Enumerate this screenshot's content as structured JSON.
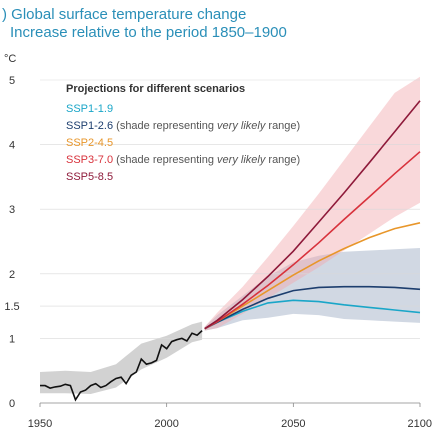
{
  "chart_data": {
    "type": "line",
    "title": ") Global surface temperature change",
    "subtitle": "Increase relative to the period 1850–1900",
    "unit": "°C",
    "xlim": [
      1950,
      2100
    ],
    "ylim": [
      0,
      5
    ],
    "x_ticks": [
      "1950",
      "2000",
      "2050",
      "2100"
    ],
    "y_ticks": [
      "0",
      "1",
      "1.5",
      "2",
      "3",
      "4",
      "5"
    ],
    "legend": {
      "title": "Projections for different scenarios",
      "items": [
        {
          "key": "ssp119",
          "label": "SSP1-1.9",
          "color": "#1aa6c8"
        },
        {
          "key": "ssp126",
          "label": "SSP1-2.6",
          "note_prefix": " (shade representing ",
          "note_italic": "very likely",
          "note_suffix": " range)",
          "color": "#1d3e6e"
        },
        {
          "key": "ssp245",
          "label": "SSP2-4.5",
          "color": "#e8962a"
        },
        {
          "key": "ssp370",
          "label": "SSP3-7.0",
          "note_prefix": " (shade representing ",
          "note_italic": "very likely",
          "note_suffix": " range)",
          "color": "#d8323c"
        },
        {
          "key": "ssp585",
          "label": "SSP5-8.5",
          "color": "#8e1a3a"
        }
      ]
    },
    "historical": {
      "color": "#111111",
      "x": [
        1950,
        1952,
        1954,
        1956,
        1958,
        1960,
        1962,
        1964,
        1966,
        1968,
        1970,
        1972,
        1974,
        1976,
        1978,
        1980,
        1982,
        1984,
        1986,
        1988,
        1990,
        1992,
        1994,
        1996,
        1998,
        2000,
        2002,
        2004,
        2006,
        2008,
        2010,
        2012,
        2014
      ],
      "y": [
        0.27,
        0.27,
        0.23,
        0.25,
        0.26,
        0.29,
        0.27,
        0.05,
        0.17,
        0.2,
        0.27,
        0.3,
        0.24,
        0.27,
        0.33,
        0.38,
        0.4,
        0.3,
        0.43,
        0.48,
        0.68,
        0.6,
        0.62,
        0.66,
        0.9,
        0.84,
        0.95,
        0.98,
        1.0,
        0.96,
        1.08,
        1.05,
        1.12
      ]
    },
    "historical_shade": {
      "x": [
        1950,
        1960,
        1970,
        1980,
        1990,
        2000,
        2010,
        2014
      ],
      "lower": [
        0.15,
        0.15,
        0.14,
        0.24,
        0.52,
        0.7,
        0.94,
        0.98
      ],
      "upper": [
        0.48,
        0.5,
        0.48,
        0.6,
        0.92,
        1.04,
        1.22,
        1.26
      ]
    },
    "series": [
      {
        "key": "ssp119",
        "name": "SSP1-1.9",
        "x": [
          2015,
          2020,
          2030,
          2040,
          2050,
          2060,
          2070,
          2080,
          2090,
          2100
        ],
        "y": [
          1.15,
          1.25,
          1.42,
          1.55,
          1.59,
          1.57,
          1.52,
          1.48,
          1.44,
          1.4
        ]
      },
      {
        "key": "ssp126",
        "name": "SSP1-2.6",
        "x": [
          2015,
          2020,
          2030,
          2040,
          2050,
          2060,
          2070,
          2080,
          2090,
          2100
        ],
        "y": [
          1.15,
          1.25,
          1.45,
          1.62,
          1.74,
          1.79,
          1.8,
          1.8,
          1.79,
          1.76
        ]
      },
      {
        "key": "ssp245",
        "name": "SSP2-4.5",
        "x": [
          2015,
          2020,
          2030,
          2040,
          2050,
          2060,
          2070,
          2080,
          2090,
          2100
        ],
        "y": [
          1.15,
          1.26,
          1.5,
          1.74,
          1.98,
          2.2,
          2.39,
          2.56,
          2.7,
          2.79
        ]
      },
      {
        "key": "ssp370",
        "name": "SSP3-7.0",
        "x": [
          2015,
          2020,
          2030,
          2040,
          2050,
          2060,
          2070,
          2080,
          2090,
          2100
        ],
        "y": [
          1.15,
          1.26,
          1.53,
          1.82,
          2.14,
          2.48,
          2.84,
          3.19,
          3.55,
          3.89
        ]
      },
      {
        "key": "ssp585",
        "name": "SSP5-8.5",
        "x": [
          2015,
          2020,
          2030,
          2040,
          2050,
          2060,
          2070,
          2080,
          2090,
          2100
        ],
        "y": [
          1.15,
          1.28,
          1.6,
          1.96,
          2.35,
          2.8,
          3.25,
          3.72,
          4.2,
          4.68
        ]
      }
    ],
    "shades": [
      {
        "key": "ssp126",
        "color": "#9aa9c0",
        "x": [
          2015,
          2020,
          2030,
          2040,
          2050,
          2060,
          2070,
          2080,
          2090,
          2100
        ],
        "lower": [
          1.12,
          1.16,
          1.28,
          1.32,
          1.38,
          1.36,
          1.3,
          1.28,
          1.26,
          1.24
        ],
        "upper": [
          1.18,
          1.36,
          1.66,
          1.96,
          2.18,
          2.28,
          2.34,
          2.36,
          2.38,
          2.4
        ]
      },
      {
        "key": "ssp370",
        "color": "#f2a8ad",
        "x": [
          2015,
          2020,
          2030,
          2040,
          2050,
          2060,
          2070,
          2080,
          2090,
          2100
        ],
        "lower": [
          1.12,
          1.16,
          1.38,
          1.62,
          1.86,
          2.1,
          2.36,
          2.62,
          2.88,
          3.1
        ],
        "upper": [
          1.18,
          1.4,
          1.8,
          2.26,
          2.74,
          3.24,
          3.76,
          4.28,
          4.8,
          5.05
        ]
      }
    ]
  }
}
